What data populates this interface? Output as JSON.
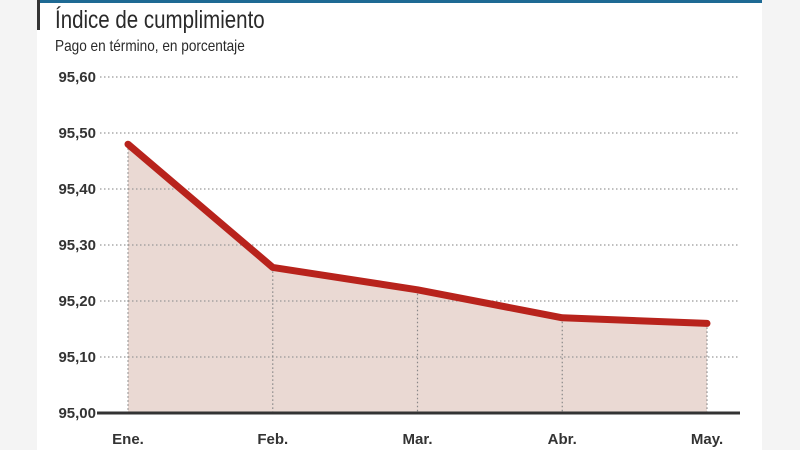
{
  "chart_data": {
    "type": "area",
    "title": "Índice de cumplimiento",
    "subtitle": "Pago en término, en porcentaje",
    "xlabel": "",
    "ylabel": "",
    "categories": [
      "Ene.",
      "Feb.",
      "Mar.",
      "Abr.",
      "May."
    ],
    "series": [
      {
        "name": "Índice de cumplimiento",
        "values": [
          95.48,
          95.26,
          95.22,
          95.17,
          95.16
        ]
      }
    ],
    "ylim": [
      95.0,
      95.6
    ],
    "yticks": [
      "95,00",
      "95,10",
      "95,20",
      "95,30",
      "95,40",
      "95,50",
      "95,60"
    ],
    "grid": true,
    "legend": "none",
    "colors": {
      "line": "#b8231c",
      "fill": "#ead9d3",
      "header": "#1e6a94"
    }
  }
}
